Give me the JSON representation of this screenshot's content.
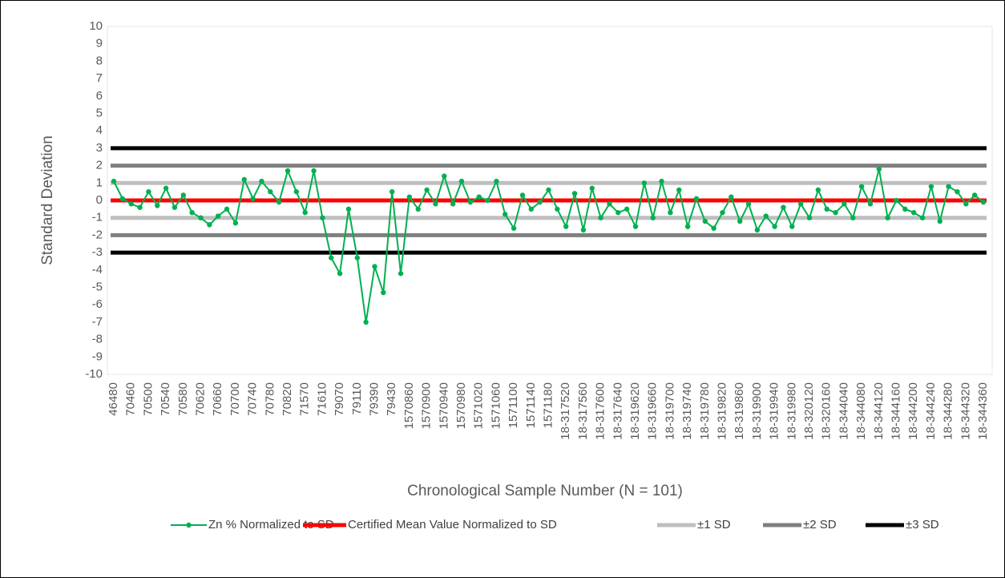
{
  "chart_data": {
    "type": "line",
    "ylabel": "Standard Deviation",
    "xlabel": "Chronological Sample Number (N = 101)",
    "ylim": [
      -10,
      10
    ],
    "yticks": [
      -10,
      -9,
      -8,
      -7,
      -6,
      -5,
      -4,
      -3,
      -2,
      -1,
      0,
      1,
      2,
      3,
      4,
      5,
      6,
      7,
      8,
      9,
      10
    ],
    "categories": [
      "46480",
      null,
      "70460",
      null,
      "70500",
      null,
      "70540",
      null,
      "70580",
      null,
      "70620",
      null,
      "70660",
      null,
      "70700",
      null,
      "70740",
      null,
      "70780",
      null,
      "70820",
      null,
      "71570",
      null,
      "71610",
      null,
      "79070",
      null,
      "79110",
      null,
      "79390",
      null,
      "79430",
      null,
      "1570860",
      null,
      "1570900",
      null,
      "1570940",
      null,
      "1570980",
      null,
      "1571020",
      null,
      "1571060",
      null,
      "1571100",
      null,
      "1571140",
      null,
      "1571180",
      null,
      "18-317520",
      null,
      "18-317560",
      null,
      "18-317600",
      null,
      "18-317640",
      null,
      "18-319620",
      null,
      "18-319660",
      null,
      "18-319700",
      null,
      "18-319740",
      null,
      "18-319780",
      null,
      "18-319820",
      null,
      "18-319860",
      null,
      "18-319900",
      null,
      "18-319940",
      null,
      "18-319980",
      null,
      "18-320120",
      null,
      "18-320160",
      null,
      "18-344040",
      null,
      "18-344080",
      null,
      "18-344120",
      null,
      "18-344160",
      null,
      "18-344200",
      null,
      "18-344240",
      null,
      "18-344280",
      null,
      "18-344320",
      null,
      "18-344360"
    ],
    "series": [
      {
        "name": "Zn % Normalized to SD",
        "color": "#00b050",
        "values": [
          1.1,
          0.1,
          -0.2,
          -0.4,
          0.5,
          -0.3,
          0.7,
          -0.4,
          0.3,
          -0.7,
          -1.0,
          -1.4,
          -0.9,
          -0.5,
          -1.3,
          1.2,
          0.1,
          1.1,
          0.5,
          -0.1,
          1.7,
          0.5,
          -0.7,
          1.7,
          -1.0,
          -3.3,
          -4.2,
          -0.5,
          -3.3,
          -7.0,
          -3.8,
          -5.3,
          0.5,
          -4.2,
          0.2,
          -0.5,
          0.6,
          -0.2,
          1.4,
          -0.2,
          1.1,
          -0.1,
          0.2,
          0.0,
          1.1,
          -0.8,
          -1.6,
          0.3,
          -0.5,
          -0.1,
          0.6,
          -0.5,
          -1.5,
          0.4,
          -1.7,
          0.7,
          -1.0,
          -0.2,
          -0.7,
          -0.5,
          -1.5,
          1.0,
          -1.0,
          1.1,
          -0.7,
          0.6,
          -1.5,
          0.1,
          -1.2,
          -1.6,
          -0.7,
          0.2,
          -1.2,
          -0.2,
          -1.7,
          -0.9,
          -1.5,
          -0.4,
          -1.5,
          -0.2,
          -1.0,
          0.6,
          -0.5,
          -0.7,
          -0.2,
          -1.0,
          0.8,
          -0.2,
          1.8,
          -1.0,
          0.0,
          -0.5,
          -0.7,
          -1.0,
          0.8,
          -1.2,
          0.8,
          0.5,
          -0.2,
          0.3,
          -0.1
        ]
      }
    ],
    "reference_lines": [
      {
        "name": "Certified Mean Value Normalized to SD",
        "color": "#ff0000",
        "values": [
          0
        ]
      },
      {
        "name": "±1 SD",
        "color": "#bfbfbf",
        "values": [
          1,
          -1
        ]
      },
      {
        "name": "±2 SD",
        "color": "#7f7f7f",
        "values": [
          2,
          -2
        ]
      },
      {
        "name": "±3 SD",
        "color": "#000000",
        "values": [
          3,
          -3
        ]
      }
    ]
  }
}
